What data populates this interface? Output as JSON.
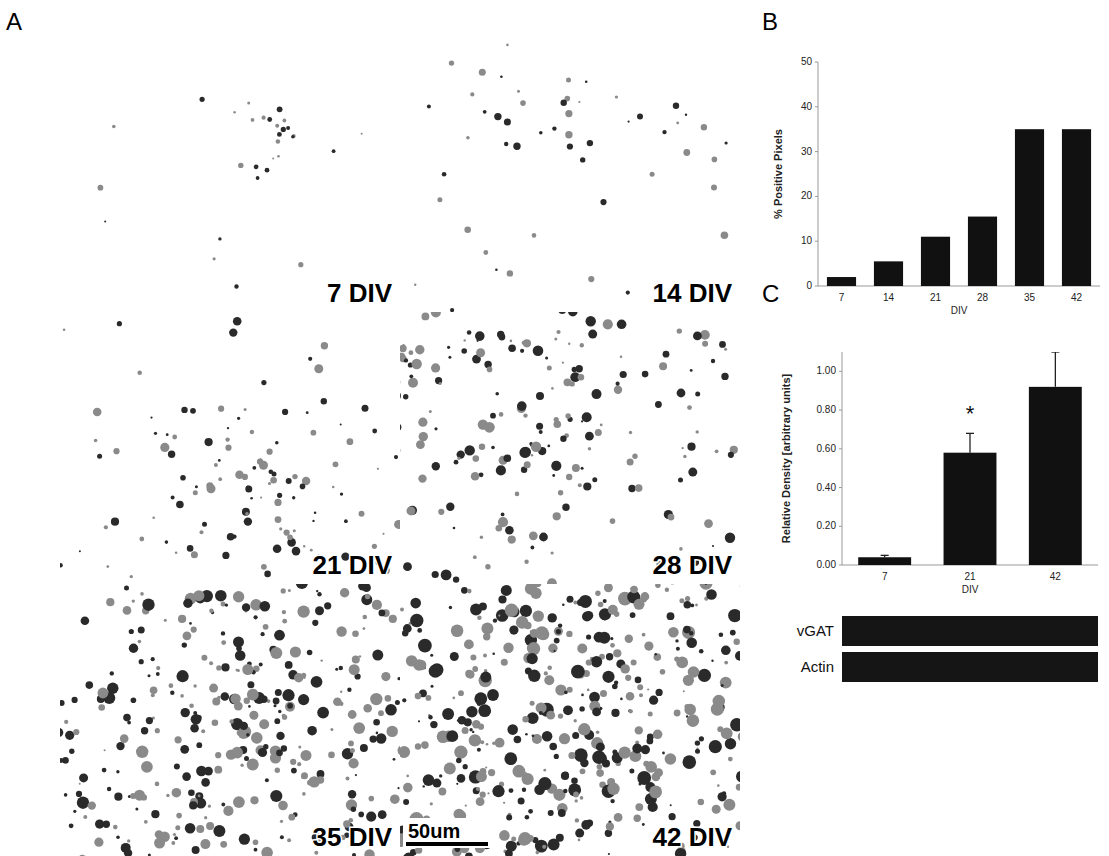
{
  "panel_labels": [
    "A",
    "B",
    "C"
  ],
  "micrographs": {
    "labels": [
      "7 DIV",
      "14 DIV",
      "21 DIV",
      "28 DIV",
      "35 DIV",
      "42 DIV"
    ],
    "scale_bar": "50um"
  },
  "chart_data": [
    {
      "type": "bar",
      "x_label": "DIV",
      "y_label": "% Positive Pixels",
      "categories": [
        "7",
        "14",
        "21",
        "28",
        "35",
        "42"
      ],
      "values": [
        2,
        5.5,
        11,
        15.5,
        35,
        35
      ],
      "color": "#111111",
      "ylim": [
        0,
        50
      ],
      "yticks": [
        0,
        10,
        20,
        30,
        40,
        50
      ],
      "grid": false
    },
    {
      "type": "bar",
      "x_label": "DIV",
      "y_label": "Relative Density [arbitrary units]",
      "categories": [
        "7",
        "21",
        "42"
      ],
      "values": [
        0.04,
        0.58,
        0.92
      ],
      "errors": [
        0.01,
        0.1,
        0.18
      ],
      "color": "#111111",
      "ylim": [
        0,
        1.1
      ],
      "yticks": [
        {
          "value": 0,
          "label": "0.00"
        },
        {
          "value": 0.2,
          "label": "0.20"
        },
        {
          "value": 0.4,
          "label": "0.40"
        },
        {
          "value": 0.6,
          "label": "0.60"
        },
        {
          "value": 0.8,
          "label": "0.80"
        },
        {
          "value": 1,
          "label": "1.00"
        }
      ],
      "annotations": [
        {
          "text": "*",
          "category": "21"
        }
      ],
      "grid": false
    }
  ],
  "blot": {
    "rows": [
      "vGAT",
      "Actin"
    ]
  }
}
